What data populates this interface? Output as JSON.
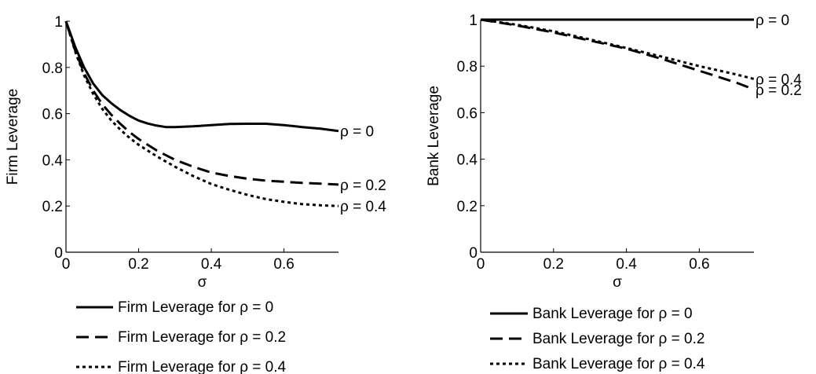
{
  "chart_data": [
    {
      "type": "line",
      "title": "",
      "xlabel": "σ",
      "ylabel": "Firm Leverage",
      "xlim": [
        0,
        0.75
      ],
      "ylim": [
        0,
        1
      ],
      "xticks": [
        0,
        0.2,
        0.4,
        0.6
      ],
      "xtick_labels": [
        "0",
        "0.2",
        "0.4",
        "0.6"
      ],
      "yticks": [
        0,
        0.2,
        0.4,
        0.6,
        0.8,
        1
      ],
      "ytick_labels": [
        "0",
        "0.2",
        "0.4",
        "0.6",
        "0.8",
        "1"
      ],
      "grid": false,
      "legend_position": "below",
      "series": [
        {
          "name": "Firm Leverage for ρ = 0",
          "end_label": "ρ = 0",
          "style": "solid",
          "x": [
            0,
            0.025,
            0.05,
            0.075,
            0.1,
            0.125,
            0.15,
            0.175,
            0.2,
            0.225,
            0.25,
            0.275,
            0.3,
            0.35,
            0.4,
            0.45,
            0.5,
            0.55,
            0.6,
            0.65,
            0.7,
            0.75
          ],
          "y": [
            1.0,
            0.89,
            0.8,
            0.73,
            0.68,
            0.645,
            0.615,
            0.59,
            0.57,
            0.557,
            0.548,
            0.542,
            0.542,
            0.545,
            0.55,
            0.555,
            0.556,
            0.556,
            0.55,
            0.542,
            0.535,
            0.525
          ]
        },
        {
          "name": "Firm Leverage for ρ = 0.2",
          "end_label": "ρ = 0.2",
          "style": "dashed",
          "x": [
            0,
            0.025,
            0.05,
            0.075,
            0.1,
            0.125,
            0.15,
            0.175,
            0.2,
            0.25,
            0.3,
            0.35,
            0.4,
            0.45,
            0.5,
            0.55,
            0.6,
            0.65,
            0.7,
            0.75
          ],
          "y": [
            1.0,
            0.875,
            0.775,
            0.7,
            0.64,
            0.595,
            0.555,
            0.52,
            0.49,
            0.44,
            0.4,
            0.37,
            0.345,
            0.33,
            0.318,
            0.31,
            0.305,
            0.3,
            0.297,
            0.293
          ]
        },
        {
          "name": "Firm Leverage for ρ = 0.4",
          "end_label": "ρ = 0.4",
          "style": "dotted",
          "x": [
            0,
            0.025,
            0.05,
            0.075,
            0.1,
            0.125,
            0.15,
            0.175,
            0.2,
            0.25,
            0.3,
            0.35,
            0.4,
            0.45,
            0.5,
            0.55,
            0.6,
            0.65,
            0.7,
            0.75
          ],
          "y": [
            1.0,
            0.87,
            0.765,
            0.685,
            0.62,
            0.57,
            0.53,
            0.495,
            0.465,
            0.415,
            0.37,
            0.33,
            0.295,
            0.27,
            0.248,
            0.23,
            0.218,
            0.208,
            0.203,
            0.2
          ]
        }
      ]
    },
    {
      "type": "line",
      "title": "",
      "xlabel": "σ",
      "ylabel": "Bank Leverage",
      "xlim": [
        0,
        0.75
      ],
      "ylim": [
        0,
        1
      ],
      "xticks": [
        0,
        0.2,
        0.4,
        0.6
      ],
      "xtick_labels": [
        "0",
        "0.2",
        "0.4",
        "0.6"
      ],
      "yticks": [
        0,
        0.2,
        0.4,
        0.6,
        0.8,
        1
      ],
      "ytick_labels": [
        "0",
        "0.2",
        "0.4",
        "0.6",
        "0.8",
        "1"
      ],
      "grid": false,
      "legend_position": "below",
      "series": [
        {
          "name": "Bank Leverage for ρ = 0",
          "end_label": "ρ = 0",
          "style": "solid",
          "x": [
            0,
            0.75
          ],
          "y": [
            1.0,
            1.0
          ]
        },
        {
          "name": "Bank Leverage for ρ = 0.2",
          "end_label": "ρ = 0.2",
          "style": "dashed",
          "x": [
            0,
            0.1,
            0.2,
            0.3,
            0.4,
            0.5,
            0.6,
            0.7,
            0.75
          ],
          "y": [
            1.0,
            0.975,
            0.945,
            0.91,
            0.875,
            0.83,
            0.78,
            0.73,
            0.7
          ]
        },
        {
          "name": "Bank Leverage for ρ = 0.4",
          "end_label": "ρ = 0.4",
          "style": "dotted",
          "x": [
            0,
            0.1,
            0.2,
            0.3,
            0.4,
            0.5,
            0.6,
            0.7,
            0.75
          ],
          "y": [
            1.0,
            0.978,
            0.95,
            0.915,
            0.878,
            0.84,
            0.8,
            0.765,
            0.745
          ]
        }
      ]
    }
  ]
}
